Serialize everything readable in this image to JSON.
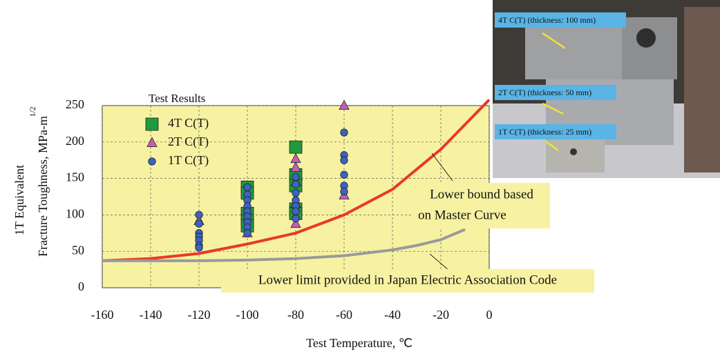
{
  "chart_data": {
    "type": "scatter",
    "x_label": "Test Temperature, ℃",
    "y_label_lines": [
      "1T Equivalent",
      "Fracture Toughness, MPa-m",
      "1/2"
    ],
    "legend_title": "Test Results",
    "xlim": [
      -160,
      0
    ],
    "xticks": [
      -160,
      -140,
      -120,
      -100,
      -80,
      -60,
      -40,
      -20,
      0
    ],
    "ylim": [
      0,
      250
    ],
    "yticks": [
      0,
      50,
      100,
      150,
      200,
      250
    ],
    "grid": true,
    "plot_background": "#f7f2a2",
    "series": [
      {
        "name": "4T C(T)",
        "color": "#1f9a3c",
        "marker": "square",
        "x": [
          -100,
          -100,
          -100,
          -100,
          -100,
          -80,
          -80,
          -80,
          -80,
          -80
        ],
        "values": [
          138,
          130,
          102,
          92,
          85,
          193,
          155,
          140,
          108,
          102
        ]
      },
      {
        "name": "2T C(T)",
        "color": "#c45fb4",
        "marker": "triangle",
        "x": [
          -120,
          -100,
          -80,
          -80,
          -80,
          -80,
          -80,
          -60,
          -60
        ],
        "values": [
          92,
          75,
          177,
          165,
          145,
          115,
          88,
          250,
          127
        ]
      },
      {
        "name": "1T C(T)",
        "color": "#3b63c4",
        "marker": "circle",
        "x": [
          -120,
          -120,
          -120,
          -120,
          -120,
          -120,
          -120,
          -100,
          -100,
          -100,
          -100,
          -100,
          -100,
          -100,
          -100,
          -100,
          -80,
          -80,
          -80,
          -80,
          -80,
          -80,
          -80,
          -60,
          -60,
          -60,
          -60,
          -60,
          -60
        ],
        "values": [
          100,
          88,
          75,
          70,
          65,
          58,
          55,
          138,
          128,
          120,
          112,
          105,
          98,
          90,
          83,
          75,
          152,
          142,
          130,
          120,
          112,
          105,
          95,
          213,
          182,
          175,
          155,
          140,
          132
        ]
      }
    ],
    "curves": [
      {
        "color": "#e8392a",
        "x": [
          -160,
          -140,
          -120,
          -100,
          -80,
          -60,
          -40,
          -20,
          0
        ],
        "values": [
          37,
          40,
          47,
          60,
          75,
          100,
          135,
          190,
          258
        ]
      },
      {
        "color": "#9a9a9a",
        "x": [
          -160,
          -120,
          -100,
          -80,
          -60,
          -40,
          -30,
          -20,
          -10
        ],
        "values": [
          37,
          37,
          38,
          40,
          44,
          52,
          58,
          66,
          80
        ]
      }
    ],
    "annotations": [
      {
        "lines": [
          "Lower bound based",
          "on Master Curve"
        ]
      },
      {
        "lines": [
          "Lower limit provided in Japan Electric Association Code"
        ]
      }
    ]
  },
  "photo": {
    "labels": [
      "4T C(T) (thickness: 100 mm)",
      "2T C(T) (thickness: 50 mm)",
      "1T C(T) (thickness: 25 mm)"
    ]
  }
}
